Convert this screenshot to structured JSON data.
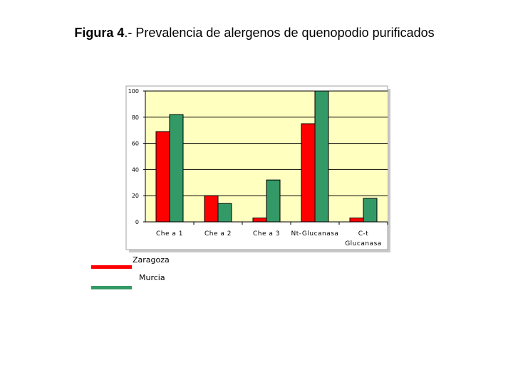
{
  "title": {
    "bold_part": "Figura 4",
    "rest": ".- Prevalencia de alergenos de quenopodio purificados"
  },
  "colors": {
    "plot_bg": "#FFFFC0",
    "zaragoza": "#FF0000",
    "murcia": "#339966"
  },
  "chart_data": {
    "type": "bar",
    "categories": [
      [
        "Che a 1"
      ],
      [
        "Che a 2"
      ],
      [
        "Che a 3"
      ],
      [
        "Nt-Glucanasa"
      ],
      [
        "C-t",
        "Glucanasa"
      ]
    ],
    "series": [
      {
        "name": "Zaragoza",
        "values": [
          69,
          20,
          3,
          75,
          3
        ]
      },
      {
        "name": "Murcia",
        "values": [
          82,
          14,
          32,
          100,
          18
        ]
      }
    ],
    "ylim": [
      0,
      100
    ],
    "yticks": [
      "0",
      "20",
      "40",
      "60",
      "80",
      "100"
    ],
    "grid": true,
    "legend_placement": "bottom-left"
  }
}
